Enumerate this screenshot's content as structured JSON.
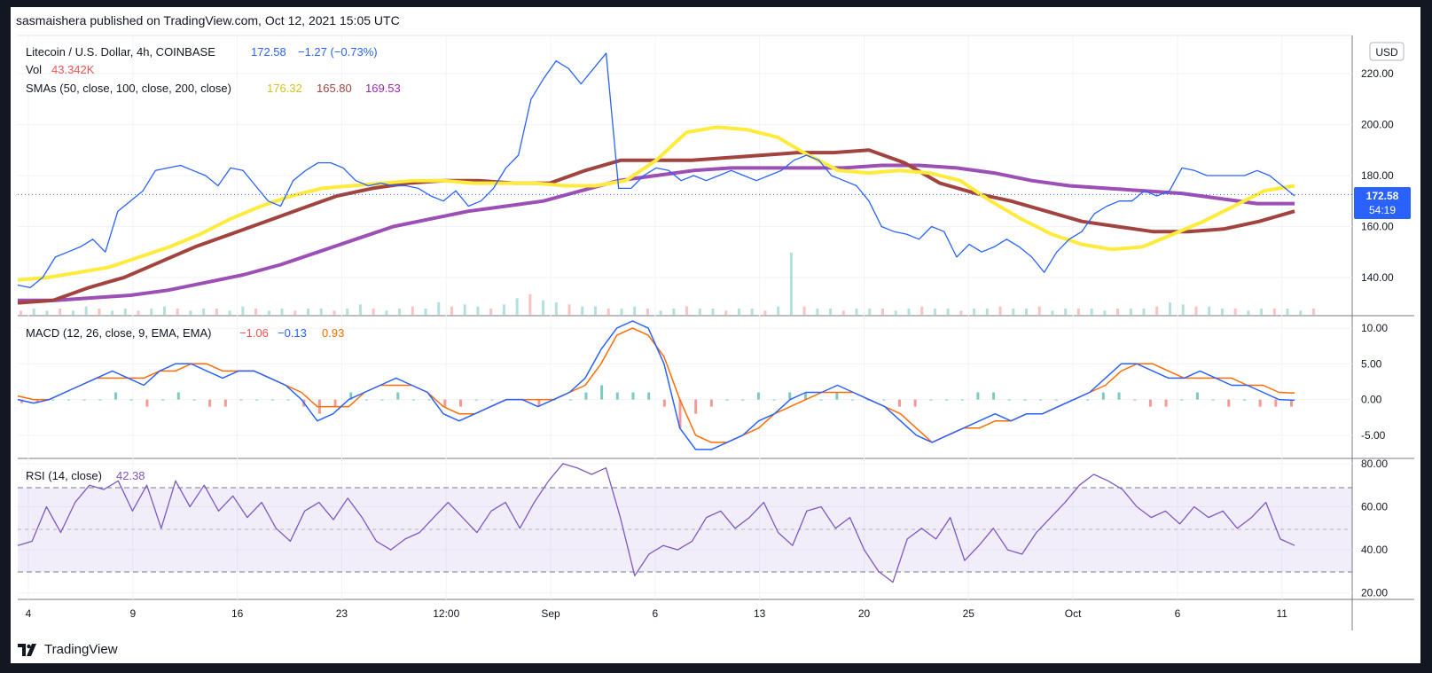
{
  "header": {
    "author": "sasmaishera",
    "published_text": "published on TradingView.com,",
    "date": "Oct 12, 2021 15:05 UTC"
  },
  "legend": {
    "symbol": "Litecoin / U.S. Dollar, 4h, COINBASE",
    "price": "172.58",
    "change": "−1.27 (−0.73%)",
    "vol_label": "Vol",
    "vol_value": "43.342K",
    "sma_label": "SMAs (50, close, 100, close, 200, close)",
    "sma50": "176.32",
    "sma100": "165.80",
    "sma200": "169.53",
    "macd_label": "MACD (12, 26, close, 9, EMA, EMA)",
    "macd_hist": "−1.06",
    "macd_line": "−0.13",
    "macd_signal": "0.93",
    "rsi_label": "RSI (14, close)",
    "rsi_value": "42.38"
  },
  "currency": "USD",
  "price_tag": {
    "price": "172.58",
    "countdown": "54:19"
  },
  "brand": "TradingView",
  "colors": {
    "price": "#2962ff",
    "sma50": "#ffeb3b",
    "sma100": "#a1443f",
    "sma200": "#9c4fb5",
    "macd": "#2962ff",
    "signal": "#ff6d00",
    "rsi": "#7e57c2",
    "up": "#26a69a",
    "down": "#ef5350",
    "tag": "#2962ff"
  },
  "chart_data": [
    {
      "type": "line",
      "title": "Litecoin / U.S. Dollar, 4h, COINBASE",
      "ylim": [
        125,
        235
      ],
      "y_ticks": [
        "140.00",
        "160.00",
        "180.00",
        "200.00",
        "220.00"
      ],
      "x_ticks": [
        "4",
        "9",
        "16",
        "23",
        "12:00",
        "Sep",
        "6",
        "13",
        "20",
        "25",
        "Oct",
        "6",
        "11"
      ],
      "series": [
        {
          "name": "Litecoin / U.S. Dollar",
          "values": [
            137,
            136,
            140,
            148,
            150,
            152,
            155,
            150,
            166,
            170,
            174,
            182,
            183,
            184,
            182,
            180,
            176,
            183,
            182,
            176,
            170,
            168,
            178,
            182,
            185,
            185,
            183,
            178,
            176,
            177,
            176,
            176,
            175,
            172,
            170,
            174,
            168,
            170,
            175,
            183,
            188,
            210,
            218,
            225,
            222,
            216,
            222,
            228,
            175,
            175,
            180,
            183,
            182,
            178,
            180,
            178,
            180,
            182,
            180,
            178,
            180,
            182,
            186,
            188,
            186,
            180,
            178,
            176,
            170,
            160,
            158,
            157,
            155,
            160,
            158,
            148,
            153,
            150,
            152,
            155,
            152,
            148,
            142,
            150,
            155,
            158,
            165,
            168,
            170,
            170,
            174,
            172,
            174,
            183,
            182,
            180,
            180,
            180,
            180,
            182,
            180,
            176,
            172
          ]
        },
        {
          "name": "SMA 50",
          "values": [
            139,
            140,
            142,
            144,
            148,
            152,
            157,
            163,
            168,
            172,
            175,
            176,
            177,
            178,
            178,
            177,
            177,
            177,
            176,
            176,
            178,
            186,
            197,
            199,
            198,
            195,
            188,
            182,
            181,
            182,
            181,
            178,
            170,
            163,
            157,
            153,
            151,
            152,
            157,
            162,
            168,
            174,
            176
          ]
        },
        {
          "name": "SMA 100",
          "values": [
            130,
            131,
            136,
            140,
            146,
            152,
            157,
            162,
            167,
            172,
            175,
            177,
            178,
            178,
            177,
            177,
            182,
            186,
            186,
            186,
            187,
            188,
            189,
            189,
            190,
            185,
            177,
            173,
            170,
            166,
            162,
            160,
            158,
            158,
            159,
            162,
            166
          ]
        },
        {
          "name": "SMA 200",
          "values": [
            131,
            131,
            132,
            133,
            135,
            138,
            141,
            145,
            150,
            155,
            160,
            163,
            166,
            168,
            170,
            174,
            178,
            180,
            182,
            183,
            183,
            183,
            183,
            184,
            184,
            183,
            181,
            178,
            176,
            175,
            174,
            173,
            171,
            169,
            169
          ]
        }
      ]
    },
    {
      "type": "bar",
      "title": "Vol",
      "values": [
        2,
        3,
        2,
        3,
        2,
        4,
        3,
        2,
        3,
        2,
        3,
        4,
        3,
        2,
        3,
        3,
        2,
        4,
        3,
        2,
        3,
        2,
        3,
        3,
        2,
        3,
        5,
        3,
        2,
        3,
        4,
        3,
        6,
        4,
        5,
        4,
        3,
        5,
        8,
        10,
        7,
        6,
        5,
        4,
        4,
        3,
        3,
        4,
        3,
        2,
        3,
        4,
        3,
        3,
        2,
        3,
        3,
        2,
        4,
        30,
        4,
        3,
        3,
        2,
        3,
        3,
        3,
        2,
        3,
        4,
        3,
        3,
        2,
        3,
        3,
        4,
        3,
        3,
        4,
        2,
        3,
        3,
        3,
        2,
        3,
        3,
        3,
        4,
        6,
        5,
        4,
        4,
        3,
        3,
        2,
        3,
        3,
        3,
        2,
        3
      ]
    },
    {
      "type": "line",
      "title": "MACD (12, 26, close, 9, EMA, EMA)",
      "ylim": [
        -8,
        11.5
      ],
      "y_ticks": [
        "-5.00",
        "0.00",
        "5.00",
        "10.00"
      ],
      "series": [
        {
          "name": "MACD",
          "values": [
            0,
            -0.5,
            0,
            1,
            2,
            3,
            4,
            3,
            2,
            4,
            5,
            5,
            4,
            3,
            4,
            4,
            3,
            2,
            0,
            -3,
            -2,
            0,
            1,
            2,
            3,
            2,
            1,
            -2,
            -3,
            -2,
            -1,
            0,
            0,
            -1,
            0,
            1,
            3,
            7,
            10,
            11,
            10,
            5,
            -4,
            -7,
            -7,
            -6,
            -5,
            -3,
            -2,
            0,
            1,
            1,
            2,
            1,
            0,
            -1,
            -3,
            -5,
            -6,
            -5,
            -4,
            -3,
            -2,
            -3,
            -2,
            -2,
            -1,
            0,
            1,
            3,
            5,
            5,
            4,
            3,
            3,
            4,
            3,
            2,
            2,
            1,
            0,
            -0.1
          ]
        },
        {
          "name": "Signal",
          "values": [
            0.5,
            0,
            0,
            1,
            2,
            3,
            3,
            3,
            3,
            4,
            4,
            5,
            5,
            4,
            4,
            4,
            3,
            2,
            1,
            -1,
            -1,
            -1,
            1,
            2,
            2,
            2,
            1,
            -1,
            -2,
            -2,
            -1,
            0,
            0,
            0,
            0,
            1,
            2,
            5,
            9,
            10,
            9,
            6,
            0,
            -5,
            -6,
            -6,
            -5,
            -4,
            -2,
            -1,
            0,
            1,
            1,
            1,
            0,
            -1,
            -2,
            -4,
            -6,
            -5,
            -4,
            -4,
            -3,
            -3,
            -2,
            -2,
            -1,
            0,
            1,
            2,
            4,
            5,
            5,
            4,
            3,
            3,
            3,
            3,
            2,
            2,
            1,
            0.9
          ]
        },
        {
          "name": "Histogram",
          "values": [
            -0.5,
            -0.5,
            0,
            0,
            0,
            0,
            1,
            0,
            -1,
            0,
            1,
            0,
            -1,
            -1,
            0,
            0,
            0,
            0,
            -1,
            -2,
            -1,
            1,
            0,
            0,
            1,
            0,
            0,
            -1,
            -1,
            0,
            0,
            0,
            0,
            -1,
            0,
            0,
            1,
            2,
            1,
            1,
            1,
            -1,
            -4,
            -2,
            -1,
            0,
            0,
            1,
            0,
            1,
            1,
            0,
            1,
            0,
            0,
            0,
            -1,
            -1,
            0,
            0,
            0,
            1,
            1,
            0,
            0,
            0,
            0,
            0,
            0,
            1,
            1,
            0,
            -1,
            -1,
            0,
            1,
            0,
            -1,
            0,
            -1,
            -1,
            -1
          ]
        }
      ]
    },
    {
      "type": "line",
      "title": "RSI (14, close)",
      "ylim": [
        17,
        82
      ],
      "y_ticks": [
        "20.00",
        "40.00",
        "60.00",
        "80.00"
      ],
      "series": [
        {
          "name": "RSI",
          "values": [
            42,
            44,
            60,
            48,
            62,
            70,
            68,
            72,
            58,
            70,
            50,
            72,
            60,
            70,
            58,
            65,
            55,
            62,
            50,
            44,
            58,
            62,
            54,
            64,
            55,
            44,
            40,
            45,
            48,
            55,
            62,
            55,
            48,
            58,
            62,
            50,
            62,
            72,
            80,
            78,
            75,
            78,
            55,
            28,
            38,
            42,
            40,
            44,
            55,
            58,
            50,
            55,
            62,
            48,
            42,
            58,
            60,
            50,
            55,
            40,
            30,
            25,
            45,
            50,
            45,
            55,
            35,
            42,
            50,
            40,
            38,
            48,
            55,
            62,
            70,
            75,
            72,
            68,
            60,
            55,
            58,
            52,
            60,
            55,
            58,
            50,
            55,
            62,
            45,
            42
          ]
        }
      ]
    }
  ]
}
